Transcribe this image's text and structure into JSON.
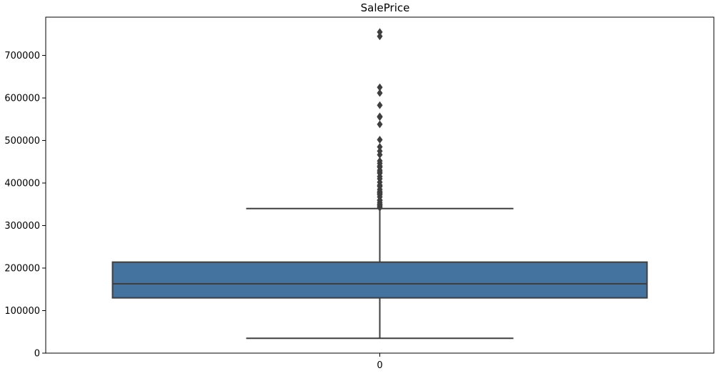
{
  "chart_data": {
    "type": "box",
    "title": "SalePrice",
    "xlabel": "",
    "ylabel": "",
    "categories": [
      "0"
    ],
    "ylim": [
      0,
      790000
    ],
    "y_ticks": [
      0,
      100000,
      200000,
      300000,
      400000,
      500000,
      600000,
      700000
    ],
    "y_tick_labels": [
      "0",
      "100000",
      "200000",
      "300000",
      "400000",
      "500000",
      "600000",
      "700000"
    ],
    "grid": false,
    "legend": "none",
    "box_color": "#4473a0",
    "edge_color": "#3f3f3f",
    "series": [
      {
        "category": "0",
        "whisker_low": 34900,
        "q1": 129975,
        "median": 163000,
        "q3": 214000,
        "whisker_high": 340000,
        "outliers": [
          342000,
          345000,
          348000,
          350000,
          354000,
          359100,
          360000,
          367294,
          372500,
          375000,
          377500,
          380000,
          385000,
          392000,
          395000,
          402000,
          410000,
          415298,
          423000,
          426000,
          430000,
          437154,
          440000,
          446261,
          451950,
          466500,
          475000,
          485000,
          501837,
          538000,
          555000,
          556581,
          582933,
          611657,
          625000,
          745000,
          755000
        ]
      }
    ]
  }
}
